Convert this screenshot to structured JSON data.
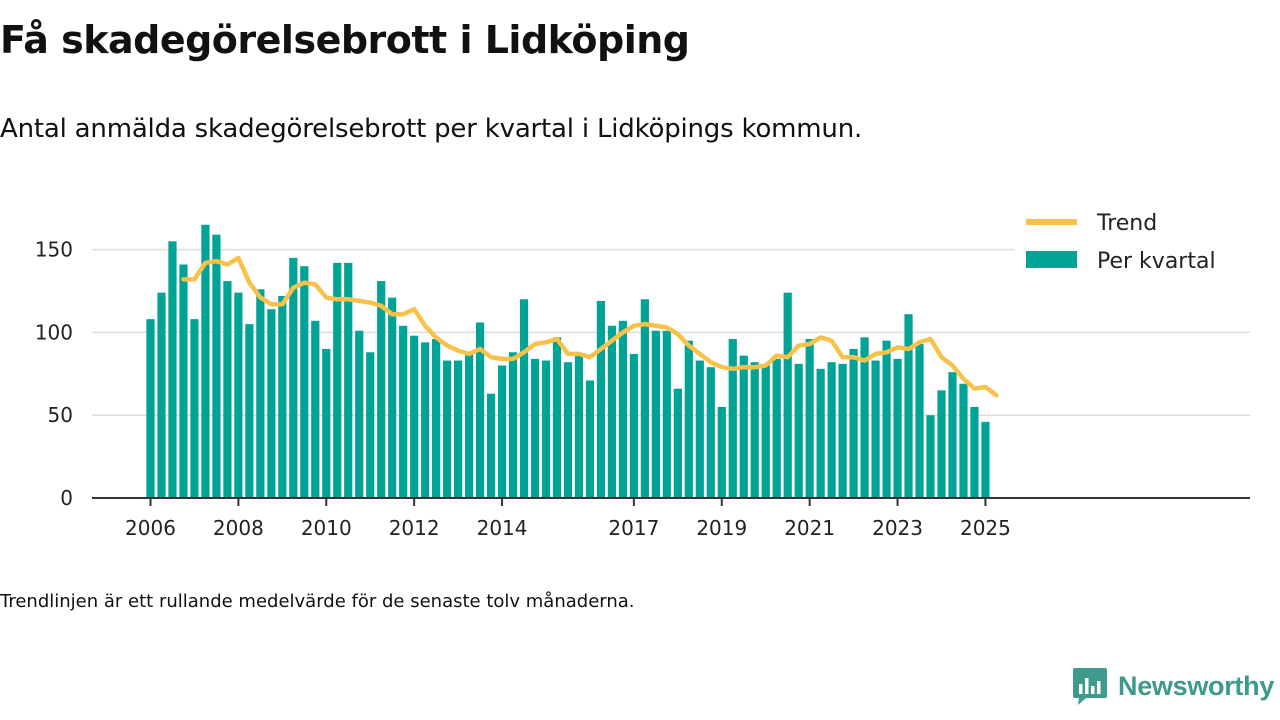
{
  "title": "Få skadegörelsebrott i Lidköping",
  "subtitle": "Antal anmälda skadegörelsebrott per kvartal i Lidköpings kommun.",
  "footnote": "Trendlinjen är ett rullande medelvärde för de senaste tolv månaderna.",
  "brand": {
    "name": "Newsworthy",
    "icon": "newsworthy-logo-icon"
  },
  "colors": {
    "bars": "#00a396",
    "trend": "#f8c24a",
    "grid": "#dddddd",
    "axis": "#333333",
    "brand": "#3d9a8c"
  },
  "chart_data": {
    "type": "bar",
    "title": "Få skadegörelsebrott i Lidköping",
    "subtitle": "Antal anmälda skadegörelsebrott per kvartal i Lidköpings kommun.",
    "xlabel": "",
    "ylabel": "",
    "ylim": [
      0,
      165
    ],
    "yticks": [
      0,
      50,
      100,
      150
    ],
    "xticks": [
      "2006",
      "2008",
      "2010",
      "2012",
      "2014",
      "2017",
      "2019",
      "2021",
      "2023",
      "2025"
    ],
    "grid": true,
    "legend_position": "top-right",
    "x_start": "2006 Q1",
    "series": [
      {
        "name": "Per kvartal",
        "type": "bar",
        "values": [
          108,
          124,
          155,
          141,
          108,
          165,
          159,
          131,
          124,
          105,
          126,
          114,
          122,
          145,
          140,
          107,
          90,
          142,
          142,
          101,
          88,
          131,
          121,
          104,
          98,
          94,
          96,
          83,
          83,
          87,
          106,
          63,
          80,
          88,
          120,
          84,
          83,
          97,
          82,
          86,
          71,
          119,
          104,
          107,
          87,
          120,
          101,
          101,
          66,
          95,
          83,
          79,
          55,
          96,
          86,
          82,
          80,
          84,
          124,
          81,
          96,
          78,
          82,
          81,
          90,
          97,
          83,
          95,
          84,
          111,
          93,
          50,
          65,
          76,
          69,
          55,
          46
        ]
      },
      {
        "name": "Trend",
        "type": "line",
        "start_index": 3,
        "values": [
          132,
          132,
          142,
          143,
          141,
          145,
          130,
          121,
          117,
          117,
          127,
          130,
          129,
          121,
          120,
          120,
          119,
          118,
          116,
          111,
          111,
          114,
          104,
          97,
          92,
          89,
          87,
          90,
          85,
          84,
          84,
          88,
          93,
          94,
          96,
          87,
          87,
          85,
          90,
          95,
          100,
          104,
          105,
          104,
          103,
          99,
          92,
          87,
          82,
          79,
          78,
          79,
          79,
          80,
          86,
          85,
          92,
          93,
          97,
          95,
          85,
          85,
          83,
          87,
          88,
          91,
          90,
          94,
          96,
          85,
          80,
          72,
          66,
          67,
          62
        ]
      }
    ]
  }
}
